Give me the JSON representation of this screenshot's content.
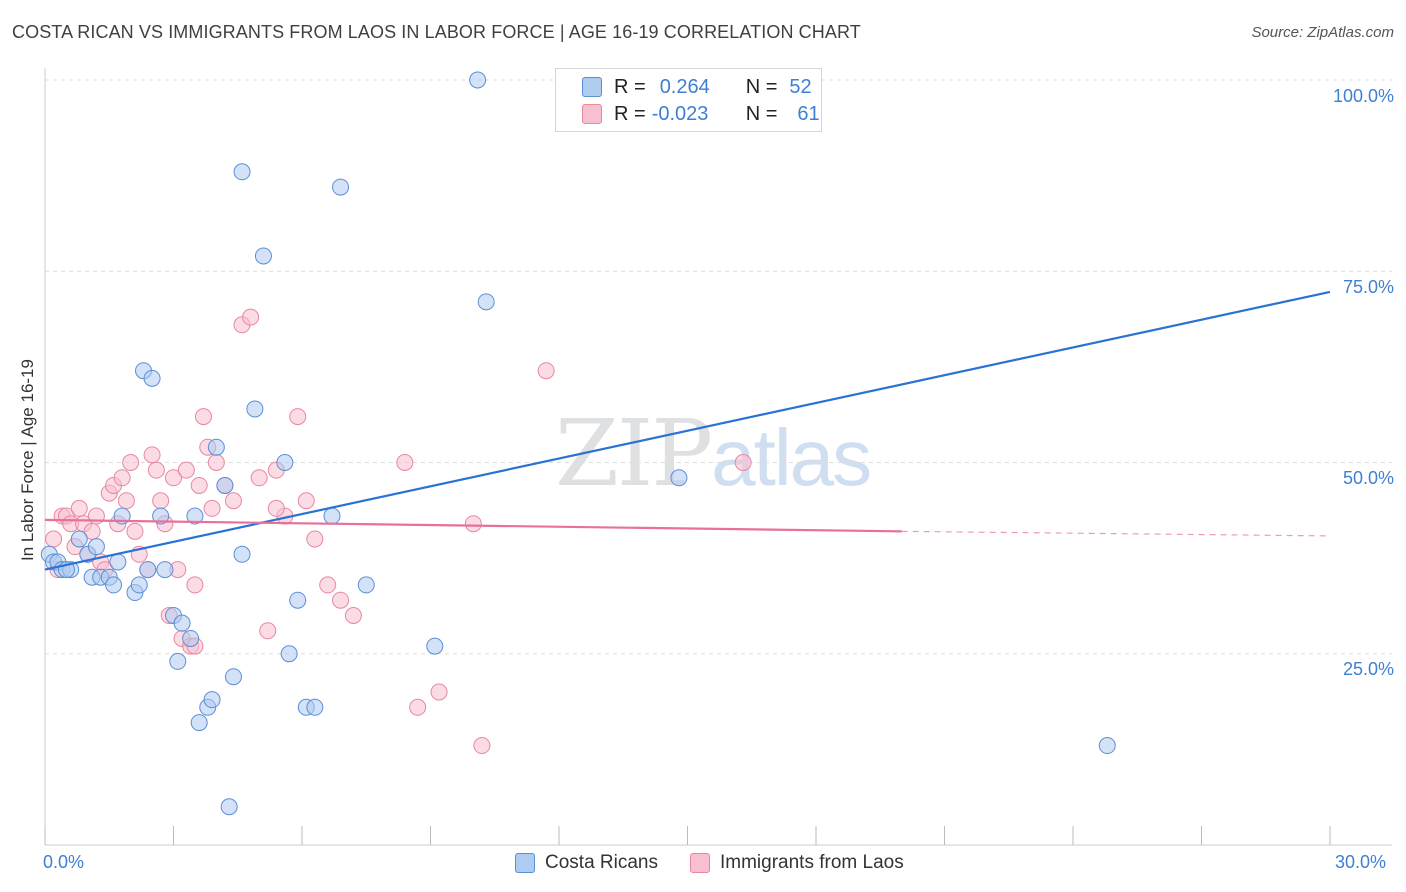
{
  "title": "COSTA RICAN VS IMMIGRANTS FROM LAOS IN LABOR FORCE | AGE 16-19 CORRELATION CHART",
  "source": "Source: ZipAtlas.com",
  "watermark": {
    "zip": "ZIP",
    "atlas": "atlas"
  },
  "legend": {
    "series1": {
      "r_label": "R =",
      "r_value": "0.264",
      "n_label": "N =",
      "n_value": "52"
    },
    "series2": {
      "r_label": "R =",
      "r_value": "-0.023",
      "n_label": "N =",
      "n_value": "61"
    }
  },
  "colors": {
    "blue_fill": "#aecbf0",
    "blue_stroke": "#5b8fd6",
    "blue_line": "#2a72d4",
    "pink_fill": "#f7bfd0",
    "pink_stroke": "#e9879f",
    "pink_line": "#e8709a",
    "tick_text": "#3f7fd4",
    "grid": "#dddddd"
  },
  "chart_data": {
    "type": "scatter",
    "title": "COSTA RICAN VS IMMIGRANTS FROM LAOS IN LABOR FORCE | AGE 16-19 CORRELATION CHART",
    "xlabel": "",
    "ylabel": "In Labor Force | Age 16-19",
    "xlim": [
      0,
      30
    ],
    "ylim": [
      0,
      100
    ],
    "x_tick_labels": [
      "0.0%",
      "30.0%"
    ],
    "y_ticks": [
      25,
      50,
      75,
      100
    ],
    "y_tick_labels": [
      "25.0%",
      "50.0%",
      "75.0%",
      "100.0%"
    ],
    "grid": true,
    "series": [
      {
        "name": "Costa Ricans",
        "r": 0.264,
        "n": 52,
        "trend": {
          "x": [
            0,
            30
          ],
          "y": [
            36.0,
            72.3
          ]
        },
        "points": [
          [
            0.1,
            38
          ],
          [
            0.2,
            37
          ],
          [
            0.3,
            37
          ],
          [
            0.4,
            36
          ],
          [
            0.6,
            36
          ],
          [
            0.8,
            40
          ],
          [
            1.0,
            38
          ],
          [
            1.1,
            35
          ],
          [
            1.3,
            35
          ],
          [
            1.5,
            35
          ],
          [
            1.7,
            37
          ],
          [
            1.8,
            43
          ],
          [
            2.1,
            33
          ],
          [
            2.2,
            34
          ],
          [
            2.3,
            62
          ],
          [
            2.5,
            61
          ],
          [
            2.7,
            43
          ],
          [
            2.8,
            36
          ],
          [
            3.0,
            30
          ],
          [
            3.1,
            24
          ],
          [
            3.2,
            29
          ],
          [
            3.4,
            27
          ],
          [
            3.5,
            43
          ],
          [
            3.6,
            16
          ],
          [
            3.8,
            18
          ],
          [
            3.9,
            19
          ],
          [
            4.0,
            52
          ],
          [
            4.2,
            47
          ],
          [
            4.4,
            22
          ],
          [
            4.6,
            38
          ],
          [
            4.6,
            88
          ],
          [
            4.9,
            57
          ],
          [
            5.1,
            77
          ],
          [
            5.6,
            50
          ],
          [
            5.7,
            25
          ],
          [
            5.9,
            32
          ],
          [
            6.1,
            18
          ],
          [
            6.3,
            18
          ],
          [
            6.7,
            43
          ],
          [
            6.9,
            86
          ],
          [
            7.5,
            34
          ],
          [
            9.1,
            26
          ],
          [
            10.1,
            100
          ],
          [
            10.3,
            71
          ],
          [
            14.8,
            48
          ],
          [
            15.4,
            100
          ],
          [
            24.8,
            13
          ],
          [
            0.5,
            36
          ],
          [
            1.2,
            39
          ],
          [
            4.3,
            5
          ],
          [
            1.6,
            34
          ],
          [
            2.4,
            36
          ]
        ]
      },
      {
        "name": "Immigrants from Laos",
        "r": -0.023,
        "n": 61,
        "trend_solid": {
          "x": [
            0,
            20
          ],
          "y": [
            42.5,
            41.0
          ]
        },
        "trend_dashed": {
          "x": [
            20,
            30
          ],
          "y": [
            41.0,
            40.4
          ]
        },
        "points": [
          [
            0.2,
            40
          ],
          [
            0.3,
            36
          ],
          [
            0.4,
            43
          ],
          [
            0.5,
            43
          ],
          [
            0.6,
            42
          ],
          [
            0.7,
            39
          ],
          [
            0.8,
            44
          ],
          [
            0.9,
            42
          ],
          [
            1.0,
            38
          ],
          [
            1.1,
            41
          ],
          [
            1.2,
            43
          ],
          [
            1.3,
            37
          ],
          [
            1.4,
            36
          ],
          [
            1.5,
            46
          ],
          [
            1.6,
            47
          ],
          [
            1.7,
            42
          ],
          [
            1.8,
            48
          ],
          [
            2.0,
            50
          ],
          [
            2.1,
            41
          ],
          [
            2.2,
            38
          ],
          [
            2.4,
            36
          ],
          [
            2.5,
            51
          ],
          [
            2.6,
            49
          ],
          [
            2.7,
            45
          ],
          [
            2.8,
            42
          ],
          [
            2.9,
            30
          ],
          [
            3.0,
            48
          ],
          [
            3.1,
            36
          ],
          [
            3.2,
            27
          ],
          [
            3.3,
            49
          ],
          [
            3.4,
            26
          ],
          [
            3.5,
            34
          ],
          [
            3.6,
            47
          ],
          [
            3.7,
            56
          ],
          [
            3.8,
            52
          ],
          [
            3.9,
            44
          ],
          [
            4.0,
            50
          ],
          [
            4.2,
            47
          ],
          [
            4.4,
            45
          ],
          [
            4.6,
            68
          ],
          [
            4.8,
            69
          ],
          [
            5.0,
            48
          ],
          [
            5.2,
            28
          ],
          [
            5.4,
            49
          ],
          [
            5.6,
            43
          ],
          [
            5.9,
            56
          ],
          [
            6.1,
            45
          ],
          [
            6.3,
            40
          ],
          [
            6.6,
            34
          ],
          [
            6.9,
            32
          ],
          [
            7.2,
            30
          ],
          [
            8.4,
            50
          ],
          [
            8.7,
            18
          ],
          [
            9.2,
            20
          ],
          [
            10.2,
            13
          ],
          [
            11.7,
            62
          ],
          [
            10.0,
            42
          ],
          [
            16.3,
            50
          ],
          [
            1.9,
            45
          ],
          [
            3.5,
            26
          ],
          [
            5.4,
            44
          ]
        ]
      }
    ]
  },
  "bottom_legend": [
    "Costa Ricans",
    "Immigrants from Laos"
  ],
  "axis_text": {
    "y_title": "In Labor Force | Age 16-19",
    "x_min": "0.0%",
    "x_max": "30.0%",
    "y_25": "25.0%",
    "y_50": "50.0%",
    "y_75": "75.0%",
    "y_100": "100.0%"
  }
}
